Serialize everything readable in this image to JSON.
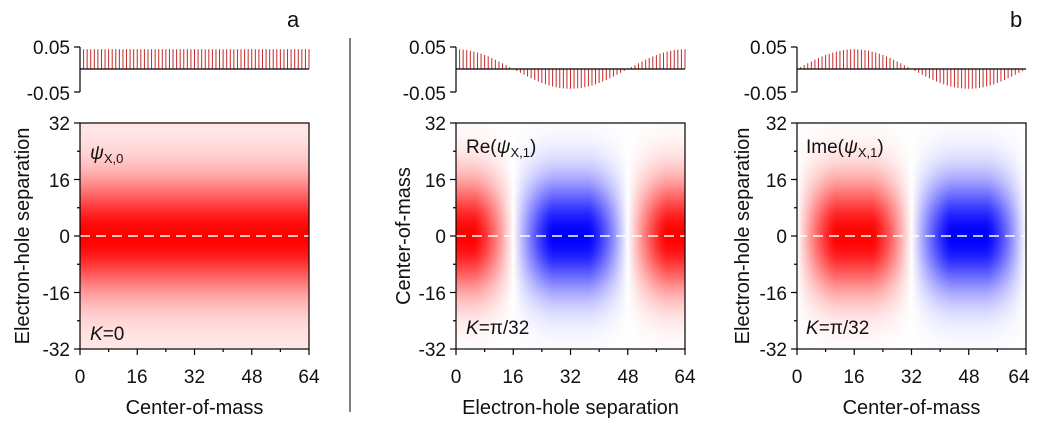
{
  "figure": {
    "panel_labels": [
      "a",
      "b"
    ]
  },
  "colors": {
    "positive": "#ff0000",
    "negative": "#0000ff",
    "stem": "#c62828",
    "axis": "#000000",
    "dashed_line": "#ffffff"
  },
  "chart_data": [
    {
      "id": "a_top",
      "type": "bar",
      "subtype": "stem",
      "x_range": [
        0,
        64
      ],
      "ylim": [
        -0.05,
        0.05
      ],
      "y_ticks": [
        "0.05",
        "-0.05"
      ],
      "y_tick_values": [
        0.05,
        -0.05
      ],
      "function": "0.045 (constant)",
      "n_stems": 64
    },
    {
      "id": "a_main",
      "type": "heatmap",
      "xlabel": "Center-of-mass",
      "ylabel": "Electron-hole separation",
      "x_ticks": [
        "0",
        "16",
        "32",
        "48",
        "64"
      ],
      "y_ticks": [
        "32",
        "16",
        "0",
        "-16",
        "-32"
      ],
      "xlim": [
        0,
        64
      ],
      "ylim": [
        -32,
        32
      ],
      "annotation_top": {
        "symbol": "ψ",
        "subscript": "X,0"
      },
      "annotation_bottom": {
        "italic": "K",
        "rest": "=0"
      },
      "dashed_line_at": 0,
      "profile": "uniform along x; gaussian peak at 0 along y"
    },
    {
      "id": "b1_top",
      "type": "bar",
      "subtype": "stem",
      "x_range": [
        0,
        64
      ],
      "ylim": [
        -0.05,
        0.05
      ],
      "y_ticks": [
        "0.05",
        "-0.05"
      ],
      "y_tick_values": [
        0.05,
        -0.05
      ],
      "function": "0.045 cos(2πx/64)",
      "n_stems": 64
    },
    {
      "id": "b1_main",
      "type": "heatmap",
      "xlabel": "Electron-hole separation",
      "ylabel": "Center-of-mass",
      "x_ticks": [
        "0",
        "16",
        "32",
        "48",
        "64"
      ],
      "y_ticks": [
        "32",
        "16",
        "0",
        "-16",
        "-32"
      ],
      "xlim": [
        0,
        64
      ],
      "ylim": [
        -32,
        32
      ],
      "annotation_top": {
        "prefix": "Re(",
        "symbol": "ψ",
        "subscript": "X,1",
        "suffix": ")"
      },
      "annotation_bottom": {
        "italic": "K",
        "rest": "=π/32"
      },
      "dashed_line_at": 0,
      "profile": "cos(2πx/64) along x; gaussian peak at 0 along y"
    },
    {
      "id": "b2_top",
      "type": "bar",
      "subtype": "stem",
      "x_range": [
        0,
        64
      ],
      "ylim": [
        -0.05,
        0.05
      ],
      "y_ticks": [
        "0.05",
        "-0.05"
      ],
      "y_tick_values": [
        0.05,
        -0.05
      ],
      "function": "0.045 sin(2πx/64)",
      "n_stems": 64
    },
    {
      "id": "b2_main",
      "type": "heatmap",
      "xlabel": "Center-of-mass",
      "ylabel": "Electron-hole separation",
      "x_ticks": [
        "0",
        "16",
        "32",
        "48",
        "64"
      ],
      "y_ticks": [
        "32",
        "16",
        "0",
        "-16",
        "-32"
      ],
      "xlim": [
        0,
        64
      ],
      "ylim": [
        -32,
        32
      ],
      "annotation_top": {
        "prefix": "Ime(",
        "symbol": "ψ",
        "subscript": "X,1",
        "suffix": ")"
      },
      "annotation_bottom": {
        "italic": "K",
        "rest": "=π/32"
      },
      "dashed_line_at": 0,
      "profile": "sin(2πx/64) along x; gaussian peak at 0 along y"
    }
  ]
}
